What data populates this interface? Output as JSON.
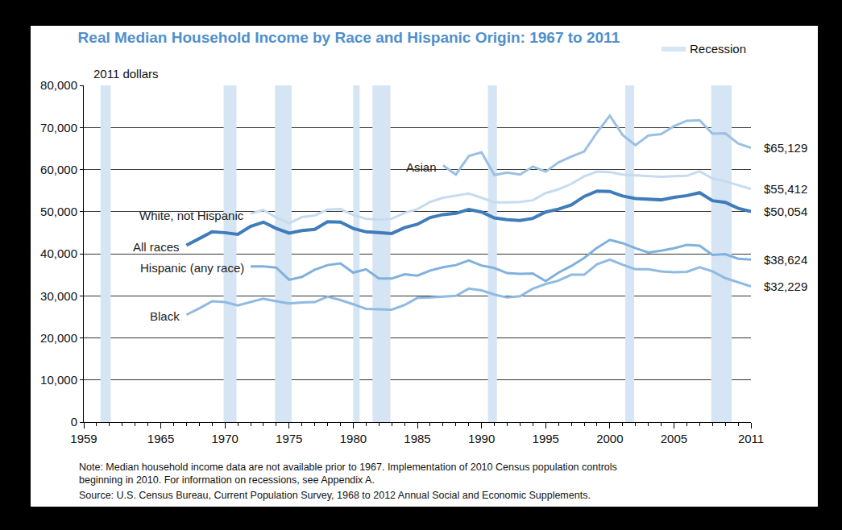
{
  "chart_data": {
    "type": "line",
    "title": "Real Median Household Income by Race and Hispanic Origin: 1967 to 2011",
    "ylabel": "2011 dollars",
    "note": [
      "Note: Median household income data are not available prior to 1967. Implementation of 2010 Census population controls",
      "beginning in 2010. For information on recessions, see Appendix A."
    ],
    "source": "Source: U.S. Census Bureau, Current Population Survey, 1968 to 2012 Annual Social and Economic Supplements.",
    "recession_label": "Recession",
    "recession_color": "#d6e5f3",
    "recessions": [
      [
        1960.3,
        1961.1
      ],
      [
        1969.9,
        1970.9
      ],
      [
        1973.9,
        1975.2
      ],
      [
        1980.0,
        1980.5
      ],
      [
        1981.5,
        1982.9
      ],
      [
        1990.5,
        1991.2
      ],
      [
        2001.2,
        2001.9
      ],
      [
        2007.9,
        2009.5
      ]
    ],
    "x": [
      1967,
      1968,
      1969,
      1970,
      1971,
      1972,
      1973,
      1974,
      1975,
      1976,
      1977,
      1978,
      1979,
      1980,
      1981,
      1982,
      1983,
      1984,
      1985,
      1986,
      1987,
      1988,
      1989,
      1990,
      1991,
      1992,
      1993,
      1994,
      1995,
      1996,
      1997,
      1998,
      1999,
      2000,
      2001,
      2002,
      2003,
      2004,
      2005,
      2006,
      2007,
      2008,
      2009,
      2010,
      2011
    ],
    "xlim": [
      1959,
      2011
    ],
    "xticks": [
      1959,
      1965,
      1970,
      1975,
      1980,
      1985,
      1990,
      1995,
      2000,
      2005,
      2011
    ],
    "ylim": [
      0,
      80000
    ],
    "yticks": [
      0,
      {
        "value": 10000,
        "label": "10,000"
      },
      {
        "value": 20000,
        "label": "20,000"
      },
      {
        "value": 30000,
        "label": "30,000"
      },
      {
        "value": 40000,
        "label": "40,000"
      },
      {
        "value": 50000,
        "label": "50,000"
      },
      {
        "value": 60000,
        "label": "60,000"
      },
      {
        "value": 70000,
        "label": "70,000"
      },
      {
        "value": 80000,
        "label": "80,000"
      }
    ],
    "grid": true,
    "series": [
      {
        "name": "Asian",
        "color": "#9cc0e3",
        "values": [
          null,
          null,
          null,
          null,
          null,
          null,
          null,
          null,
          null,
          null,
          null,
          null,
          null,
          null,
          null,
          null,
          null,
          null,
          null,
          null,
          61000,
          58800,
          63200,
          64100,
          58700,
          59300,
          58800,
          60700,
          59500,
          61700,
          63100,
          64300,
          68800,
          72800,
          68200,
          65800,
          68100,
          68400,
          70300,
          71600,
          71700,
          68500,
          68600,
          66200,
          65129
        ],
        "value_labels": [
          null,
          null,
          null,
          null,
          null,
          null,
          null,
          null,
          null,
          null,
          null,
          null,
          null,
          null,
          null,
          null,
          null,
          null,
          null,
          null,
          null,
          null,
          null,
          null,
          null,
          null,
          null,
          null,
          null,
          null,
          null,
          null,
          null,
          null,
          null,
          null,
          null,
          null,
          null,
          null,
          null,
          null,
          null,
          null,
          "$65,129"
        ]
      },
      {
        "name": "White, not Hispanic",
        "color": "#c6dbef",
        "values": [
          null,
          null,
          null,
          null,
          null,
          49500,
          50400,
          48600,
          47200,
          48700,
          49100,
          50500,
          50600,
          49200,
          48300,
          48100,
          48300,
          49700,
          50600,
          52300,
          53300,
          53800,
          54300,
          53300,
          52200,
          52200,
          52300,
          52700,
          54400,
          55300,
          56600,
          58400,
          59500,
          59400,
          58800,
          58600,
          58400,
          58300,
          58400,
          58500,
          59600,
          57900,
          57200,
          56300,
          55412
        ],
        "value_labels": [
          null,
          null,
          null,
          null,
          null,
          null,
          null,
          null,
          null,
          null,
          null,
          null,
          null,
          null,
          null,
          null,
          null,
          null,
          null,
          null,
          null,
          null,
          null,
          null,
          null,
          null,
          null,
          null,
          null,
          null,
          null,
          null,
          null,
          null,
          null,
          null,
          null,
          null,
          null,
          null,
          null,
          null,
          null,
          null,
          "$55,412"
        ]
      },
      {
        "name": "All races",
        "color": "#3f7cba",
        "values": [
          42000,
          43500,
          45200,
          45000,
          44600,
          46500,
          47500,
          46000,
          44900,
          45500,
          45800,
          47600,
          47500,
          46000,
          45200,
          45000,
          44800,
          46200,
          47000,
          48600,
          49300,
          49600,
          50500,
          49900,
          48500,
          48100,
          47900,
          48400,
          49900,
          50600,
          51600,
          53600,
          54900,
          54800,
          53700,
          53100,
          53000,
          52800,
          53400,
          53800,
          54500,
          52600,
          52200,
          50800,
          50054
        ],
        "value_labels": [
          null,
          null,
          null,
          null,
          null,
          null,
          null,
          null,
          null,
          null,
          null,
          null,
          null,
          null,
          null,
          null,
          null,
          null,
          null,
          null,
          null,
          null,
          null,
          null,
          null,
          null,
          null,
          null,
          null,
          null,
          null,
          null,
          null,
          null,
          null,
          null,
          null,
          null,
          null,
          null,
          null,
          null,
          null,
          null,
          "$50,054"
        ]
      },
      {
        "name": "Hispanic (any race)",
        "color": "#80b1dc",
        "values": [
          null,
          null,
          null,
          null,
          null,
          37000,
          37000,
          36700,
          33800,
          34500,
          36200,
          37300,
          37700,
          35500,
          36300,
          34100,
          34100,
          35100,
          34800,
          36000,
          36800,
          37300,
          38400,
          37200,
          36600,
          35400,
          35200,
          35300,
          33500,
          35500,
          37100,
          39000,
          41400,
          43300,
          42500,
          41300,
          40300,
          40700,
          41300,
          42100,
          41900,
          39700,
          39900,
          38800,
          38624
        ],
        "value_labels": [
          null,
          null,
          null,
          null,
          null,
          null,
          null,
          null,
          null,
          null,
          null,
          null,
          null,
          null,
          null,
          null,
          null,
          null,
          null,
          null,
          null,
          null,
          null,
          null,
          null,
          null,
          null,
          null,
          null,
          null,
          null,
          null,
          null,
          null,
          null,
          null,
          null,
          null,
          null,
          null,
          null,
          null,
          null,
          null,
          "$38,624"
        ]
      },
      {
        "name": "Black",
        "color": "#8fbae2",
        "values": [
          25500,
          27000,
          28700,
          28500,
          27700,
          28500,
          29300,
          28700,
          28200,
          28400,
          28500,
          29800,
          29000,
          28000,
          26900,
          26800,
          26700,
          27800,
          29500,
          29600,
          29800,
          30000,
          31700,
          31300,
          30300,
          29600,
          29900,
          31700,
          32800,
          33600,
          35000,
          35000,
          37500,
          38600,
          37400,
          36300,
          36300,
          35800,
          35600,
          35700,
          36800,
          35800,
          34200,
          33200,
          32229
        ],
        "value_labels": [
          null,
          null,
          null,
          null,
          null,
          null,
          null,
          null,
          null,
          null,
          null,
          null,
          null,
          null,
          null,
          null,
          null,
          null,
          null,
          null,
          null,
          null,
          null,
          null,
          null,
          null,
          null,
          null,
          null,
          null,
          null,
          null,
          null,
          null,
          null,
          null,
          null,
          null,
          null,
          null,
          null,
          null,
          null,
          null,
          "$32,229"
        ]
      }
    ]
  }
}
